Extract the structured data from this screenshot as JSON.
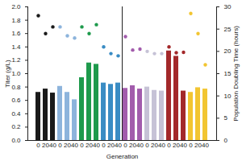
{
  "chart_data": {
    "type": "bar",
    "xlabel": "Generation",
    "ylabel": "Titer (g/L)",
    "y2label": "Population Doubling Time (hours)",
    "categories": [
      "0",
      "20",
      "40",
      "0",
      "20",
      "40",
      "0",
      "20",
      "40",
      "0",
      "20",
      "40",
      "0",
      "20",
      "40",
      "0",
      "20",
      "40",
      "0",
      "20",
      "40",
      "0",
      "20",
      "40"
    ],
    "series": [
      {
        "type": "bar",
        "colors": [
          "#1a1a1a",
          "#1a1a1a",
          "#1a1a1a",
          "#8db4dc",
          "#8db4dc",
          "#8db4dc",
          "#1e9a4c",
          "#1e9a4c",
          "#1e9a4c",
          "#3a8cc4",
          "#3a8cc4",
          "#3a8cc4",
          "#a25cac",
          "#a25cac",
          "#a25cac",
          "#c6c2d6",
          "#c6c2d6",
          "#c6c2d6",
          "#a3282a",
          "#a3282a",
          "#a3282a",
          "#f2c531",
          "#f2c531",
          "#f2c531"
        ],
        "values": [
          0.72,
          0.77,
          0.71,
          0.81,
          0.72,
          0.61,
          0.94,
          1.16,
          1.14,
          0.86,
          0.84,
          0.86,
          0.78,
          0.82,
          0.77,
          0.8,
          0.75,
          0.74,
          1.34,
          1.26,
          0.74,
          0.72,
          0.79,
          0.77
        ]
      },
      {
        "type": "scatter",
        "axis": "y2",
        "marker": "circle",
        "colors": [
          "#1a1a1a",
          "#1a1a1a",
          "#1a1a1a",
          "#8db4dc",
          "#8db4dc",
          "#8db4dc",
          "#1e9a4c",
          "#1e9a4c",
          "#1e9a4c",
          "#3a8cc4",
          "#3a8cc4",
          "#3a8cc4",
          "#a25cac",
          "#a25cac",
          "#a25cac",
          "#c6c2d6",
          "#c6c2d6",
          "#c6c2d6",
          "#a3282a",
          "#a3282a",
          "#a3282a",
          "#f2c531",
          "#f2c531",
          "#f2c531"
        ],
        "values": [
          28,
          24,
          25.5,
          25.5,
          23.5,
          23,
          25.5,
          24,
          26,
          21,
          19.5,
          19,
          23.3,
          20.3,
          20.5,
          20,
          19.5,
          19.5,
          21,
          19.7,
          19.8,
          28.5,
          24,
          17
        ]
      }
    ],
    "ylim": [
      0,
      2
    ],
    "yticks": [
      {
        "value": 0,
        "label": "0.0"
      },
      {
        "value": 0.2,
        "label": "0.2"
      },
      {
        "value": 0.4,
        "label": "0.4"
      },
      {
        "value": 0.6,
        "label": "0.6"
      },
      {
        "value": 0.8,
        "label": "0.8"
      },
      {
        "value": 1,
        "label": "1.0"
      },
      {
        "value": 1.2,
        "label": "1.2"
      },
      {
        "value": 1.4,
        "label": "1.4"
      },
      {
        "value": 1.6,
        "label": "1.6"
      },
      {
        "value": 1.8,
        "label": "1.8"
      },
      {
        "value": 2,
        "label": "2.0"
      }
    ],
    "y2lim": [
      0,
      30
    ],
    "y2ticks": [
      0,
      5,
      10,
      15,
      20,
      25,
      30
    ]
  }
}
